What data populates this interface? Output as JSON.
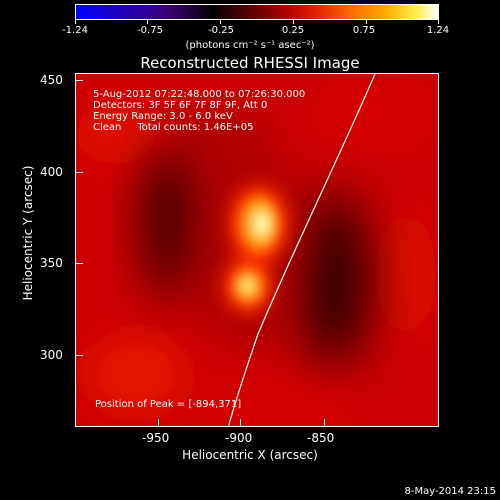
{
  "colorbar": {
    "tick_labels": [
      "-1.24",
      "-0.75",
      "-0.25",
      "0.25",
      "0.75",
      "1.24"
    ],
    "units_label": "(photons cm⁻² s⁻¹ asec⁻²)"
  },
  "title": "Reconstructed RHESSI Image",
  "info": {
    "time_range": "5-Aug-2012 07:22:48.000 to 07:26:30.000",
    "detectors": "Detectors: 3F 5F 6F 7F 8F 9F, Att 0",
    "energy_range": "Energy Range: 3.0 - 6.0 keV",
    "clean": "Clean     Total counts: 1.46E+05",
    "peak_position": "Position of Peak = [-894,371]"
  },
  "axes": {
    "xlabel": "Heliocentric X (arcsec)",
    "ylabel": "Heliocentric Y (arcsec)",
    "xticks": [
      "-950",
      "-900",
      "-850"
    ],
    "yticks": [
      "450",
      "400",
      "350",
      "300"
    ]
  },
  "timestamp": "8-May-2014 23:15"
}
